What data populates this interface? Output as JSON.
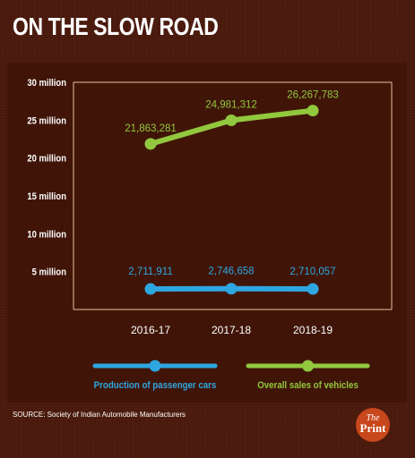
{
  "header": {
    "title": "ON THE SLOW ROAD"
  },
  "footer": {
    "source": "SOURCE: Society of Indian Automobile Manufacturers"
  },
  "logo": {
    "line1": "The",
    "line2": "Print"
  },
  "colors": {
    "panel": "#401508",
    "gridline": "#e2c39a",
    "production": "#2ea6e0",
    "sales": "#92c83e",
    "text": "#ffffff"
  },
  "chart_data": {
    "type": "line",
    "title": "ON THE SLOW ROAD",
    "categories": [
      "2016-17",
      "2017-18",
      "2018-19"
    ],
    "y_ticks": [
      {
        "value": 5000000,
        "label": "5 million"
      },
      {
        "value": 10000000,
        "label": "10 million"
      },
      {
        "value": 15000000,
        "label": "15 million"
      },
      {
        "value": 20000000,
        "label": "20 million"
      },
      {
        "value": 25000000,
        "label": "25 million"
      },
      {
        "value": 30000000,
        "label": "30 million"
      }
    ],
    "ylim": [
      0,
      30000000
    ],
    "grid": false,
    "legend_position": "bottom",
    "series": [
      {
        "name": "Production of passenger cars",
        "values": [
          2711911,
          2746658,
          2710057
        ],
        "labels": [
          "2,711,911",
          "2,746,658",
          "2,710,057"
        ],
        "color": "#2ea6e0"
      },
      {
        "name": "Overall sales of vehicles",
        "values": [
          21863281,
          24981312,
          26267783
        ],
        "labels": [
          "21,863,281",
          "24,981,312",
          "26,267,783"
        ],
        "color": "#92c83e"
      }
    ]
  }
}
